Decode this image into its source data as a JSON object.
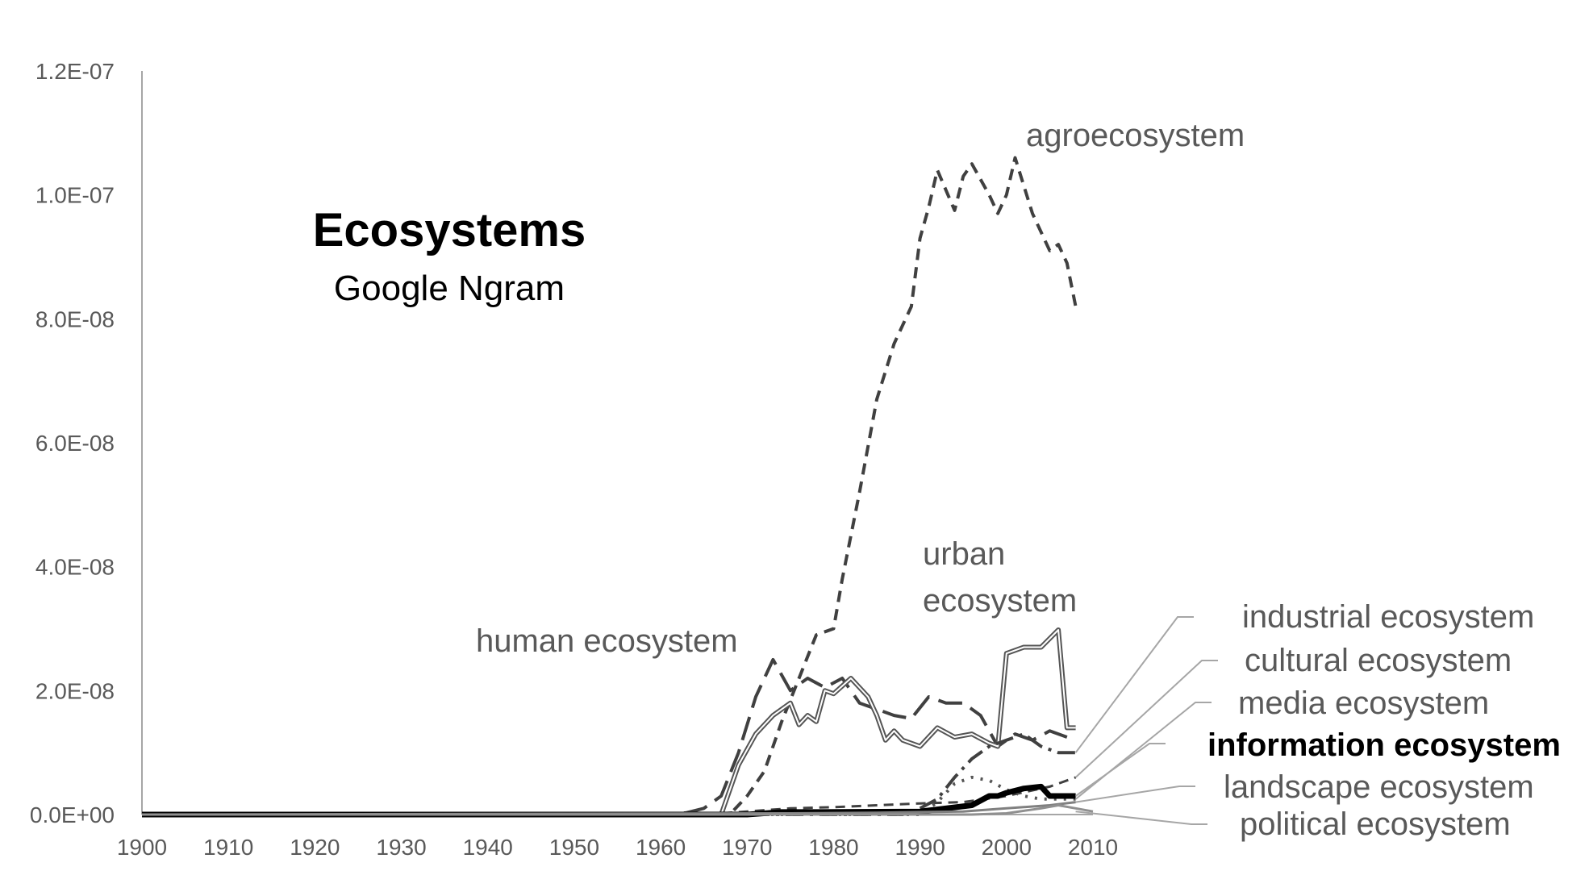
{
  "chart_data": {
    "type": "line",
    "title": "Ecosystems",
    "subtitle": "Google Ngram",
    "xlabel": "",
    "ylabel": "",
    "xlim": [
      1900,
      2010
    ],
    "ylim": [
      0,
      1.2e-07
    ],
    "x_ticks": [
      "1900",
      "1910",
      "1920",
      "1930",
      "1940",
      "1950",
      "1960",
      "1970",
      "1980",
      "1990",
      "2000",
      "2010"
    ],
    "y_ticks": [
      "0.0E+00",
      "2.0E-08",
      "4.0E-08",
      "6.0E-08",
      "8.0E-08",
      "1.0E-07",
      "1.2E-07"
    ],
    "grid": false,
    "legend": "none",
    "series": [
      {
        "name": "agroecosystem",
        "color": "#404040",
        "x": [
          1900,
          1960,
          1962,
          1964,
          1966,
          1968,
          1970,
          1972,
          1974,
          1976,
          1978,
          1980,
          1981,
          1983,
          1985,
          1987,
          1989,
          1990,
          1991,
          1992,
          1994,
          1995,
          1996,
          1998,
          1999,
          2000,
          2001,
          2003,
          2005,
          2006,
          2007,
          2008
        ],
        "values": [
          0,
          0,
          0,
          0,
          0,
          1e-11,
          3e-09,
          7e-09,
          1.5e-08,
          2.2e-08,
          2.9e-08,
          3e-08,
          3.8e-08,
          5.2e-08,
          6.7e-08,
          7.6e-08,
          8.2e-08,
          9.3e-08,
          9.8e-08,
          1.04e-07,
          9.75e-08,
          1.03e-07,
          1.05e-07,
          1e-07,
          9.7e-08,
          1e-07,
          1.06e-07,
          9.7e-08,
          9.1e-08,
          9.2e-08,
          8.9e-08,
          8.2e-08
        ]
      },
      {
        "name": "human ecosystem",
        "color": "#404040",
        "x": [
          1900,
          1961,
          1963,
          1965,
          1967,
          1969,
          1971,
          1973,
          1975,
          1977,
          1979,
          1981,
          1983,
          1985,
          1987,
          1989,
          1991,
          1993,
          1995,
          1997,
          1999,
          2001,
          2003,
          2005,
          2007,
          2008
        ],
        "values": [
          0,
          0,
          3e-10,
          1e-09,
          3e-09,
          1e-08,
          1.9e-08,
          2.5e-08,
          2e-08,
          2.2e-08,
          2.05e-08,
          2.2e-08,
          1.8e-08,
          1.7e-08,
          1.6e-08,
          1.55e-08,
          1.9e-08,
          1.8e-08,
          1.8e-08,
          1.6e-08,
          1.1e-08,
          1.3e-08,
          1.2e-08,
          1.35e-08,
          1.25e-08,
          1.2e-08
        ]
      },
      {
        "name": "urban ecosystem",
        "color": "#555555",
        "x": [
          1900,
          1967,
          1969,
          1971,
          1973,
          1975,
          1976,
          1977,
          1978,
          1979,
          1980,
          1982,
          1984,
          1985,
          1986,
          1987,
          1988,
          1990,
          1992,
          1994,
          1996,
          1998,
          1999,
          2000,
          2002,
          2004,
          2006,
          2007,
          2008
        ],
        "values": [
          0,
          0,
          8e-09,
          1.3e-08,
          1.6e-08,
          1.8e-08,
          1.45e-08,
          1.6e-08,
          1.5e-08,
          2e-08,
          1.95e-08,
          2.2e-08,
          1.9e-08,
          1.6e-08,
          1.2e-08,
          1.35e-08,
          1.2e-08,
          1.1e-08,
          1.4e-08,
          1.25e-08,
          1.3e-08,
          1.15e-08,
          1.1e-08,
          2.6e-08,
          2.7e-08,
          2.7e-08,
          2.98e-08,
          1.4e-08,
          1.4e-08
        ]
      },
      {
        "name": "industrial ecosystem",
        "color": "#404040",
        "x": [
          1900,
          1988,
          1990,
          1992,
          1994,
          1996,
          1998,
          2000,
          2002,
          2004,
          2006,
          2008
        ],
        "values": [
          0,
          0,
          1e-09,
          2.5e-09,
          6e-09,
          9e-09,
          1.1e-08,
          1.2e-08,
          1.3e-08,
          1.1e-08,
          1e-08,
          1e-08
        ]
      },
      {
        "name": "cultural ecosystem",
        "color": "#404040",
        "x": [
          1900,
          1965,
          1970,
          1975,
          1980,
          1985,
          1990,
          1995,
          2000,
          2005,
          2008
        ],
        "values": [
          0,
          0,
          5e-10,
          1e-09,
          1.2e-09,
          1.5e-09,
          1.8e-09,
          2e-09,
          3e-09,
          4.5e-09,
          6e-09
        ]
      },
      {
        "name": "media ecosystem",
        "color": "#555555",
        "x": [
          1900,
          1990,
          1992,
          1994,
          1996,
          1998,
          2000,
          2002,
          2004,
          2006,
          2008
        ],
        "values": [
          0,
          0,
          2e-09,
          5e-09,
          6e-09,
          5.5e-09,
          4e-09,
          3e-09,
          2.5e-09,
          2.5e-09,
          2.5e-09
        ]
      },
      {
        "name": "information ecosystem",
        "color": "#000000",
        "x": [
          1900,
          1970,
          1974,
          1978,
          1990,
          1996,
          1998,
          1999,
          2000,
          2002,
          2004,
          2005,
          2006,
          2008
        ],
        "values": [
          0,
          0,
          4e-10,
          4e-10,
          5e-10,
          1.5e-09,
          3e-09,
          3e-09,
          3.5e-09,
          4.2e-09,
          4.5e-09,
          3e-09,
          3e-09,
          3e-09
        ]
      },
      {
        "name": "landscape ecosystem",
        "color": "#808080",
        "x": [
          1900,
          1975,
          1985,
          1995,
          2000,
          2005,
          2008
        ],
        "values": [
          0,
          2e-10,
          3e-10,
          5e-10,
          1e-09,
          1.5e-09,
          2e-09
        ]
      },
      {
        "name": "political ecosystem",
        "color": "#909090",
        "x": [
          1900,
          1996,
          2000,
          2004,
          2006,
          2008,
          2010
        ],
        "values": [
          0,
          0,
          2e-10,
          1e-09,
          1.5e-09,
          1e-09,
          5e-10
        ]
      }
    ],
    "annotations": [
      "agroecosystem",
      "urban",
      "ecosystem",
      "human ecosystem",
      "industrial ecosystem",
      "cultural ecosystem",
      "media ecosystem",
      "information ecosystem",
      "landscape ecosystem",
      "political ecosystem"
    ]
  }
}
